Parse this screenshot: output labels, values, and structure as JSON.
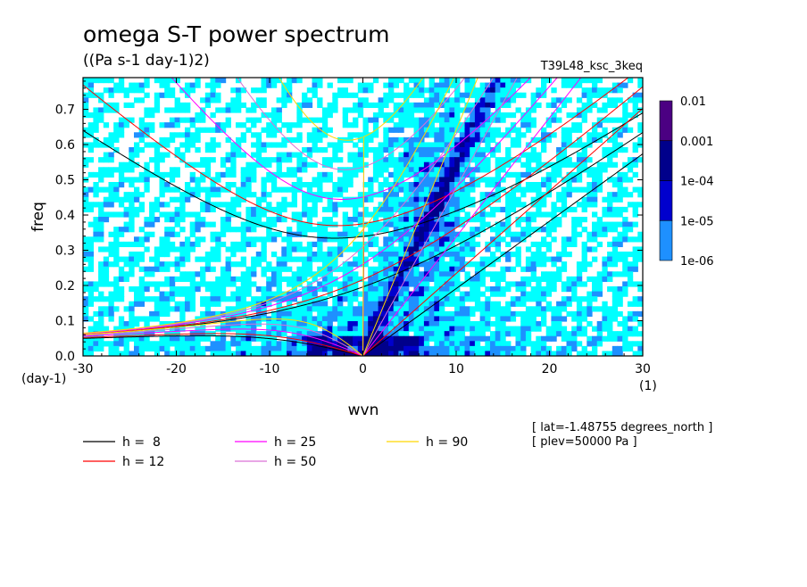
{
  "chart_data": {
    "type": "heatmap",
    "title": "omega S-T power spectrum",
    "units": "((Pa s-1 day-1)2)",
    "dataset": "T39L48_ksc_3keq",
    "xlabel": "wvn",
    "ylabel": "freq",
    "x_unit": "(1)",
    "y_unit": "(day-1)",
    "xlim": [
      -30,
      30
    ],
    "ylim": [
      0,
      0.79
    ],
    "xticks": [
      -30,
      -20,
      -10,
      0,
      10,
      20,
      30
    ],
    "xtick_labels": [
      "-30",
      "-20",
      "-10",
      "0",
      "10",
      "20",
      "30"
    ],
    "yticks": [
      0.0,
      0.1,
      0.2,
      0.3,
      0.4,
      0.5,
      0.6,
      0.7
    ],
    "ytick_labels": [
      "0.0",
      "0.1",
      "0.2",
      "0.3",
      "0.4",
      "0.5",
      "0.6",
      "0.7"
    ],
    "colorbar": {
      "levels": [
        "1e-06",
        "1e-05",
        "1e-04",
        "0.001",
        "0.01"
      ],
      "colors": [
        "#00ffff",
        "#1e90ff",
        "#0000cd",
        "#00008b",
        "#4b0082"
      ]
    },
    "dispersion_curves": [
      {
        "label": "h =  8",
        "h": 8,
        "color": "#000000"
      },
      {
        "label": "h = 12",
        "h": 12,
        "color": "#ff0000"
      },
      {
        "label": "h = 25",
        "h": 25,
        "color": "#ff00ff"
      },
      {
        "label": "h = 50",
        "h": 50,
        "color": "#da70d6"
      },
      {
        "label": "h = 90",
        "h": 90,
        "color": "#ffd700"
      }
    ],
    "annotations": [
      "[ lat=-1.48755 degrees_north ]",
      "[ plev=50000 Pa ]"
    ]
  }
}
